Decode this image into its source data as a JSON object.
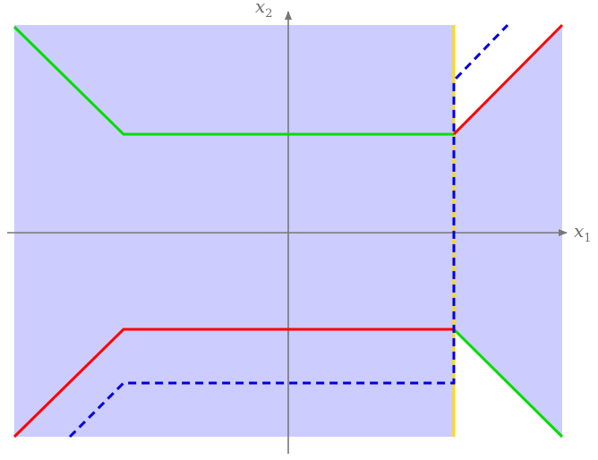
{
  "axes": {
    "x_label": "x",
    "x_subscript": "1",
    "y_label": "x",
    "y_subscript": "2"
  },
  "colors": {
    "region_fill": "#ccccff",
    "axis": "#777777",
    "red_curve": "#ff0000",
    "green_curve": "#00dd00",
    "blue_dashed": "#0000dd",
    "yellow_line": "#ffdd00"
  }
}
